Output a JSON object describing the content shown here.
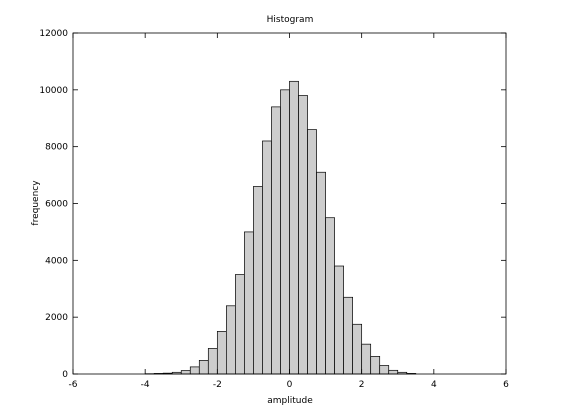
{
  "chart_data": {
    "type": "bar",
    "title": "Histogram",
    "xlabel": "amplitude",
    "ylabel": "frequency",
    "xlim": [
      -6,
      6
    ],
    "ylim": [
      0,
      12000
    ],
    "xticks": [
      -6,
      -4,
      -2,
      0,
      2,
      4,
      6
    ],
    "yticks": [
      0,
      2000,
      4000,
      6000,
      8000,
      10000,
      12000
    ],
    "bin_width": 0.25,
    "grid": false,
    "bar_color": "#cdcdcd",
    "edge_color": "#000000",
    "bins": [
      {
        "x0": -4.0,
        "value": 10
      },
      {
        "x0": -3.75,
        "value": 20
      },
      {
        "x0": -3.5,
        "value": 30
      },
      {
        "x0": -3.25,
        "value": 60
      },
      {
        "x0": -3.0,
        "value": 120
      },
      {
        "x0": -2.75,
        "value": 250
      },
      {
        "x0": -2.5,
        "value": 480
      },
      {
        "x0": -2.25,
        "value": 900
      },
      {
        "x0": -2.0,
        "value": 1500
      },
      {
        "x0": -1.75,
        "value": 2400
      },
      {
        "x0": -1.5,
        "value": 3500
      },
      {
        "x0": -1.25,
        "value": 5000
      },
      {
        "x0": -1.0,
        "value": 6600
      },
      {
        "x0": -0.75,
        "value": 8200
      },
      {
        "x0": -0.5,
        "value": 9400
      },
      {
        "x0": -0.25,
        "value": 10000
      },
      {
        "x0": 0.0,
        "value": 10300
      },
      {
        "x0": 0.25,
        "value": 9800
      },
      {
        "x0": 0.5,
        "value": 8600
      },
      {
        "x0": 0.75,
        "value": 7100
      },
      {
        "x0": 1.0,
        "value": 5500
      },
      {
        "x0": 1.25,
        "value": 3800
      },
      {
        "x0": 1.5,
        "value": 2700
      },
      {
        "x0": 1.75,
        "value": 1750
      },
      {
        "x0": 2.0,
        "value": 1050
      },
      {
        "x0": 2.25,
        "value": 620
      },
      {
        "x0": 2.5,
        "value": 300
      },
      {
        "x0": 2.75,
        "value": 130
      },
      {
        "x0": 3.0,
        "value": 60
      },
      {
        "x0": 3.25,
        "value": 20
      }
    ]
  }
}
